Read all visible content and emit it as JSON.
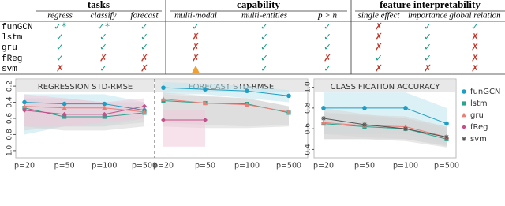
{
  "table": {
    "groups": [
      {
        "title": "tasks",
        "columns": [
          "regress",
          "classify",
          "forecast"
        ]
      },
      {
        "title": "capability",
        "columns": [
          "multi-modal",
          "multi-entities",
          "p > n"
        ]
      },
      {
        "title": "feature interpretability",
        "columns": [
          "single effect",
          "importance",
          "global relation"
        ]
      }
    ],
    "rows": [
      {
        "name": "funGCN",
        "cells": [
          "✓*",
          "✓*",
          "✓",
          "✓",
          "✓",
          "✓",
          "✗",
          "✓",
          "✓"
        ]
      },
      {
        "name": "lstm",
        "cells": [
          "✓",
          "✓",
          "✓",
          "✗",
          "✓",
          "✓",
          "✗",
          "✓",
          "✗"
        ]
      },
      {
        "name": "gru",
        "cells": [
          "✓",
          "✓",
          "✓",
          "✗",
          "✓",
          "✓",
          "✗",
          "✓",
          "✗"
        ]
      },
      {
        "name": "fReg",
        "cells": [
          "✓",
          "✗",
          "✗",
          "✗",
          "✓",
          "✗",
          "✓",
          "✓",
          "✗"
        ]
      },
      {
        "name": "svm",
        "cells": [
          "✗",
          "✓",
          "✗",
          "▲",
          "✓",
          "✓",
          "✗",
          "✗",
          "✗"
        ]
      }
    ]
  },
  "chart_data": [
    {
      "type": "line",
      "title": "REGRESSION STD-RMSE",
      "categories": [
        "p=20",
        "p=50",
        "p=100",
        "p=500"
      ],
      "ylim": [
        1.05,
        0.15
      ],
      "yticks": [
        0.2,
        0.4,
        0.6,
        0.8,
        {
          "value": 1,
          "label": "1.0"
        }
      ],
      "series": [
        {
          "name": "funGCN",
          "color": "#1d9fc4",
          "marker": "circle",
          "band": "#bfe6ee",
          "values": [
            0.4,
            0.42,
            0.42,
            0.5
          ],
          "lower": [
            0.3,
            0.3,
            0.3,
            0.4
          ],
          "upper": [
            0.8,
            0.7,
            0.7,
            0.6
          ]
        },
        {
          "name": "lstm",
          "color": "#2aa38f",
          "marker": "square",
          "band": "#d6d6d6",
          "values": [
            0.47,
            0.58,
            0.58,
            0.53
          ],
          "lower": [
            0.35,
            0.45,
            0.45,
            0.45
          ],
          "upper": [
            0.7,
            0.75,
            0.75,
            0.7
          ]
        },
        {
          "name": "gru",
          "color": "#ea7f78",
          "marker": "triangle",
          "band": "#d6d6d6",
          "values": [
            0.45,
            0.47,
            0.47,
            0.52
          ],
          "lower": [
            0.35,
            0.35,
            0.4,
            0.4
          ],
          "upper": [
            0.75,
            0.7,
            0.7,
            0.65
          ]
        },
        {
          "name": "fReg",
          "color": "#c4508a",
          "marker": "diamond",
          "band": "#f1c9da",
          "values": [
            0.5,
            0.55,
            0.55,
            0.45
          ],
          "lower": [
            0.3,
            0.35,
            0.4,
            0.35
          ],
          "upper": [
            0.7,
            0.7,
            0.65,
            0.6
          ]
        }
      ]
    },
    {
      "type": "line",
      "title": "FORECAST STD-RMSE",
      "categories": [
        "p=20",
        "p=50",
        "p=100",
        "p=500"
      ],
      "ylim": [
        1.05,
        0.15
      ],
      "series": [
        {
          "name": "funGCN",
          "color": "#1d9fc4",
          "marker": "circle",
          "band": "#bfe6ee",
          "values": [
            0.22,
            0.24,
            0.26,
            0.32
          ],
          "lower": [
            0.15,
            0.17,
            0.2,
            0.25
          ],
          "upper": [
            0.3,
            0.3,
            0.35,
            0.4
          ]
        },
        {
          "name": "lstm",
          "color": "#2aa38f",
          "marker": "square",
          "band": "#d6d6d6",
          "values": [
            0.38,
            0.41,
            0.42,
            0.53
          ],
          "lower": [
            0.3,
            0.33,
            0.35,
            0.45
          ],
          "upper": [
            0.7,
            0.72,
            0.72,
            0.7
          ]
        },
        {
          "name": "gru",
          "color": "#ea7f78",
          "marker": "triangle",
          "band": "#d6d6d6",
          "values": [
            0.36,
            0.41,
            0.43,
            0.52
          ],
          "lower": [
            0.28,
            0.32,
            0.35,
            0.45
          ],
          "upper": [
            0.65,
            0.68,
            0.7,
            0.68
          ]
        },
        {
          "name": "fReg",
          "color": "#c4508a",
          "marker": "diamond",
          "band": "#f1c9da",
          "values": [
            0.62,
            0.62,
            null,
            null
          ],
          "lower": [
            0.5,
            0.5,
            null,
            null
          ],
          "upper": [
            0.95,
            0.95,
            null,
            null
          ]
        }
      ]
    },
    {
      "type": "line",
      "title": "CLASSIFICATION ACCURACY",
      "categories": [
        "p=20",
        "p=50",
        "p=100",
        "p=500"
      ],
      "ylim": [
        0.35,
        1.05
      ],
      "yticks": [
        0.4,
        0.6,
        0.8,
        {
          "value": 1,
          "label": "1.0"
        }
      ],
      "legend": "right",
      "series": [
        {
          "name": "funGCN",
          "color": "#1d9fc4",
          "marker": "circle",
          "band": "#bfe6ee",
          "values": [
            0.8,
            0.8,
            0.8,
            0.65
          ],
          "lower": [
            0.55,
            0.55,
            0.55,
            0.45
          ],
          "upper": [
            0.95,
            0.95,
            0.95,
            0.8
          ]
        },
        {
          "name": "lstm",
          "color": "#2aa38f",
          "marker": "square",
          "band": "#d6d6d6",
          "values": [
            0.65,
            0.62,
            0.6,
            0.5
          ],
          "lower": [
            0.5,
            0.5,
            0.48,
            0.42
          ],
          "upper": [
            0.75,
            0.72,
            0.7,
            0.6
          ]
        },
        {
          "name": "gru",
          "color": "#ea7f78",
          "marker": "triangle",
          "band": "#d6d6d6",
          "values": [
            0.66,
            0.63,
            0.62,
            0.52
          ],
          "lower": [
            0.5,
            0.5,
            0.5,
            0.43
          ],
          "upper": [
            0.76,
            0.73,
            0.72,
            0.62
          ]
        },
        {
          "name": "fReg",
          "color": "#c4508a",
          "marker": "diamond",
          "band": "#f1c9da",
          "values": [
            null,
            null,
            null,
            null
          ],
          "lower": [
            null,
            null,
            null,
            null
          ],
          "upper": [
            null,
            null,
            null,
            null
          ]
        },
        {
          "name": "svm",
          "color": "#555555",
          "marker": "asterisk",
          "band": "#d6d6d6",
          "values": [
            0.7,
            0.64,
            0.6,
            0.52
          ],
          "lower": [
            0.55,
            0.52,
            0.5,
            0.44
          ],
          "upper": [
            0.8,
            0.74,
            0.7,
            0.62
          ]
        }
      ]
    }
  ]
}
